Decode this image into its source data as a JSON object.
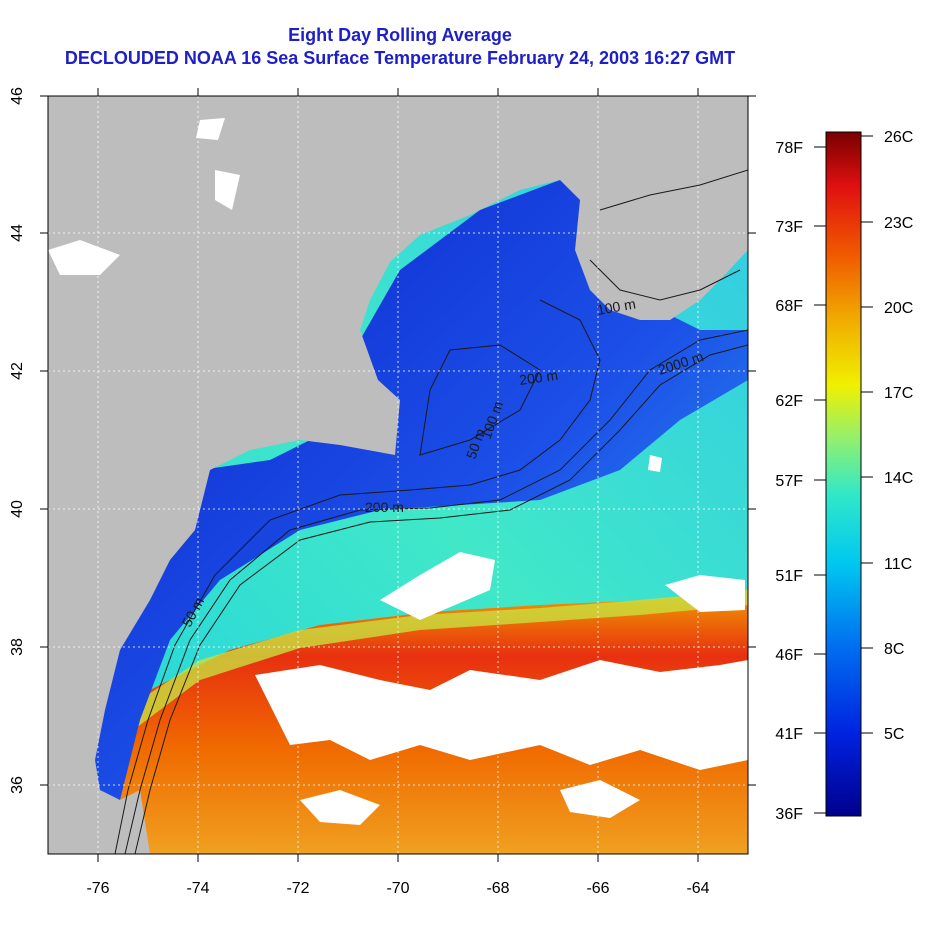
{
  "title": {
    "line1": "Eight Day Rolling Average",
    "line2": "DECLOUDED NOAA 16 Sea Surface Temperature February 24, 2003 16:27 GMT"
  },
  "axes": {
    "x_ticks": [
      "-76",
      "-74",
      "-72",
      "-70",
      "-68",
      "-66",
      "-64"
    ],
    "y_ticks": [
      "36",
      "38",
      "40",
      "42",
      "44",
      "46"
    ]
  },
  "contour_labels": [
    "50 m",
    "200 m",
    "100 m",
    "2000 m",
    "50 m",
    "200 m",
    "100 m"
  ],
  "colorbar": {
    "fahrenheit_labels": [
      "78F",
      "73F",
      "68F",
      "62F",
      "57F",
      "51F",
      "46F",
      "41F",
      "36F"
    ],
    "celsius_labels": [
      "26C",
      "23C",
      "20C",
      "17C",
      "14C",
      "11C",
      "8C",
      "5C"
    ]
  },
  "colors": {
    "land": "#bdbdbd",
    "cloud": "#ffffff",
    "title": "#1f1fc8",
    "cold": "#0a1fc8",
    "warm": "#f04010"
  }
}
